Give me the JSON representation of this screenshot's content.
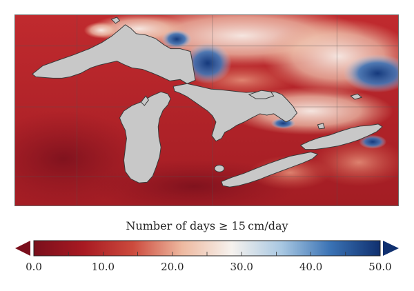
{
  "colorbar": {
    "title": "Number of days ≥ 15 cm/day",
    "min": 0,
    "max": 50,
    "tick_labels": [
      "0.0",
      "10.0",
      "20.0",
      "30.0",
      "40.0",
      "50.0"
    ],
    "colors": [
      "#7a0f1c",
      "#a81a22",
      "#cc4a3d",
      "#eeb9a0",
      "#f6f2ee",
      "#a9c8e2",
      "#3a72b4",
      "#10306f"
    ]
  },
  "map": {
    "land_fill": "#b8232a",
    "lake_fill": "#c9c9c9",
    "snow_high_color": "#1f4f9c",
    "snow_mid_color": "#f7ece4"
  }
}
